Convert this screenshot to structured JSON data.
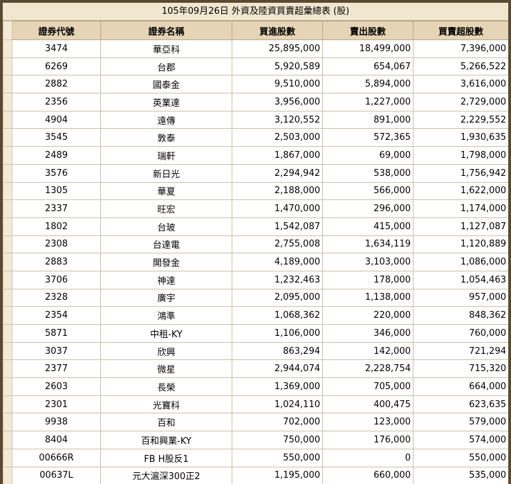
{
  "caption": "105年09月26日 外資及陸資買賣超彙總表 (股)",
  "headers": {
    "code": "證券代號",
    "name": "證券名稱",
    "buy": "買進股數",
    "sell": "賣出股數",
    "net": "買賣超股數"
  },
  "rows": [
    {
      "code": "3474",
      "name": "華亞科",
      "buy": "25,895,000",
      "sell": "18,499,000",
      "net": "7,396,000"
    },
    {
      "code": "6269",
      "name": "台郡",
      "buy": "5,920,589",
      "sell": "654,067",
      "net": "5,266,522"
    },
    {
      "code": "2882",
      "name": "國泰金",
      "buy": "9,510,000",
      "sell": "5,894,000",
      "net": "3,616,000"
    },
    {
      "code": "2356",
      "name": "英業達",
      "buy": "3,956,000",
      "sell": "1,227,000",
      "net": "2,729,000"
    },
    {
      "code": "4904",
      "name": "遠傳",
      "buy": "3,120,552",
      "sell": "891,000",
      "net": "2,229,552"
    },
    {
      "code": "3545",
      "name": "敦泰",
      "buy": "2,503,000",
      "sell": "572,365",
      "net": "1,930,635"
    },
    {
      "code": "2489",
      "name": "瑞軒",
      "buy": "1,867,000",
      "sell": "69,000",
      "net": "1,798,000"
    },
    {
      "code": "3576",
      "name": "新日光",
      "buy": "2,294,942",
      "sell": "538,000",
      "net": "1,756,942"
    },
    {
      "code": "1305",
      "name": "華夏",
      "buy": "2,188,000",
      "sell": "566,000",
      "net": "1,622,000"
    },
    {
      "code": "2337",
      "name": "旺宏",
      "buy": "1,470,000",
      "sell": "296,000",
      "net": "1,174,000"
    },
    {
      "code": "1802",
      "name": "台玻",
      "buy": "1,542,087",
      "sell": "415,000",
      "net": "1,127,087"
    },
    {
      "code": "2308",
      "name": "台達電",
      "buy": "2,755,008",
      "sell": "1,634,119",
      "net": "1,120,889"
    },
    {
      "code": "2883",
      "name": "開發金",
      "buy": "4,189,000",
      "sell": "3,103,000",
      "net": "1,086,000"
    },
    {
      "code": "3706",
      "name": "神達",
      "buy": "1,232,463",
      "sell": "178,000",
      "net": "1,054,463"
    },
    {
      "code": "2328",
      "name": "廣宇",
      "buy": "2,095,000",
      "sell": "1,138,000",
      "net": "957,000"
    },
    {
      "code": "2354",
      "name": "鴻準",
      "buy": "1,068,362",
      "sell": "220,000",
      "net": "848,362"
    },
    {
      "code": "5871",
      "name": "中租-KY",
      "buy": "1,106,000",
      "sell": "346,000",
      "net": "760,000"
    },
    {
      "code": "3037",
      "name": "欣興",
      "buy": "863,294",
      "sell": "142,000",
      "net": "721,294"
    },
    {
      "code": "2377",
      "name": "微星",
      "buy": "2,944,074",
      "sell": "2,228,754",
      "net": "715,320"
    },
    {
      "code": "2603",
      "name": "長榮",
      "buy": "1,369,000",
      "sell": "705,000",
      "net": "664,000"
    },
    {
      "code": "2301",
      "name": "光寶科",
      "buy": "1,024,110",
      "sell": "400,475",
      "net": "623,635"
    },
    {
      "code": "9938",
      "name": "百和",
      "buy": "702,000",
      "sell": "123,000",
      "net": "579,000"
    },
    {
      "code": "8404",
      "name": "百和興業-KY",
      "buy": "750,000",
      "sell": "176,000",
      "net": "574,000"
    },
    {
      "code": "00666R",
      "name": "FB H股反1",
      "buy": "550,000",
      "sell": "0",
      "net": "550,000"
    },
    {
      "code": "00637L",
      "name": "元大滬深300正2",
      "buy": "1,195,000",
      "sell": "660,000",
      "net": "535,000"
    }
  ]
}
